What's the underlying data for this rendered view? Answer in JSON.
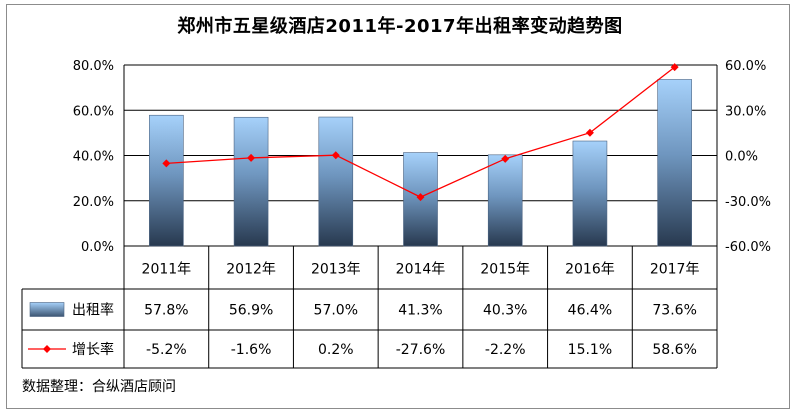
{
  "chart_data": {
    "type": "bar",
    "title": "郑州市五星级酒店2011年-2017年出租率变动趋势图",
    "categories": [
      "2011年",
      "2012年",
      "2013年",
      "2014年",
      "2015年",
      "2016年",
      "2017年"
    ],
    "series": [
      {
        "name": "出租率",
        "type": "bar",
        "axis": "left",
        "values": [
          57.8,
          56.9,
          57.0,
          41.3,
          40.3,
          46.4,
          73.6
        ],
        "labels": [
          "57.8%",
          "56.9%",
          "57.0%",
          "41.3%",
          "40.3%",
          "46.4%",
          "73.6%"
        ]
      },
      {
        "name": "增长率",
        "type": "line",
        "axis": "right",
        "values": [
          -5.2,
          -1.6,
          0.2,
          -27.6,
          -2.2,
          15.1,
          58.6
        ],
        "labels": [
          "-5.2%",
          "-1.6%",
          "0.2%",
          "-27.6%",
          "-2.2%",
          "15.1%",
          "58.6%"
        ]
      }
    ],
    "y_left": {
      "min": 0,
      "max": 80,
      "ticks": [
        "0.0%",
        "20.0%",
        "40.0%",
        "60.0%",
        "80.0%"
      ]
    },
    "y_right": {
      "min": -60,
      "max": 60,
      "ticks": [
        "-60.0%",
        "-30.0%",
        "0.0%",
        "30.0%",
        "60.0%"
      ]
    },
    "grid": true,
    "data_table": true,
    "colors": {
      "bar_top": "#a6d1fa",
      "bar_bottom": "#28394f",
      "line": "#ff0000",
      "grid": "#000000"
    }
  },
  "source_note": "数据整理：合纵酒店顾问"
}
